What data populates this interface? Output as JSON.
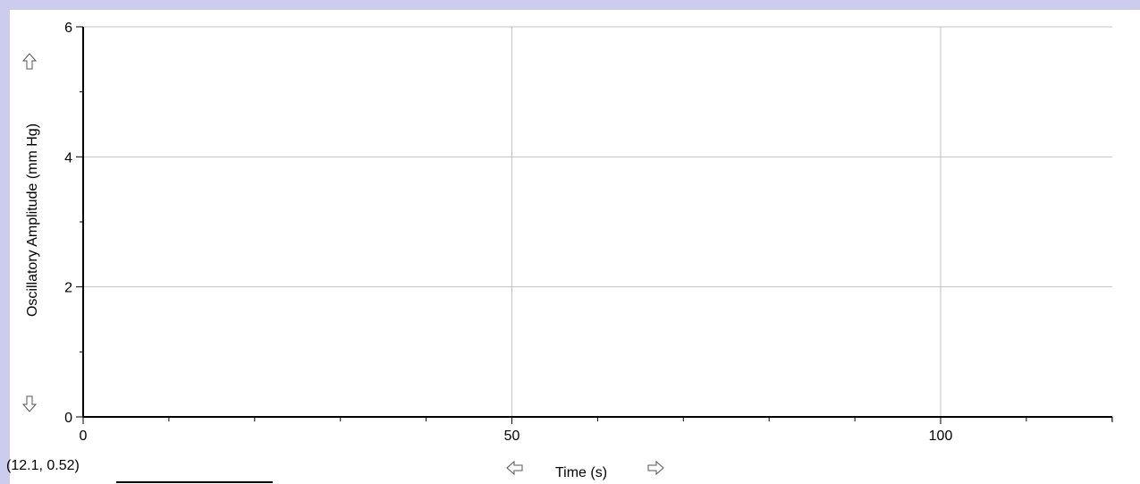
{
  "chart_data": {
    "type": "line",
    "title": "",
    "xlabel": "Time (s)",
    "ylabel": "Oscillatory Amplitude (mm Hg)",
    "xlim": [
      0,
      120
    ],
    "ylim": [
      0,
      6
    ],
    "x_major_ticks": [
      0,
      50,
      100
    ],
    "x_minor_step": 10,
    "y_major_ticks": [
      0,
      2,
      4,
      6
    ],
    "y_minor_step": 1,
    "grid": true,
    "series": []
  },
  "cursor_readout": "(12.1, 0.52)",
  "icons": {
    "y_up": "arrow-up-icon",
    "y_down": "arrow-down-icon",
    "x_left": "arrow-left-icon",
    "x_right": "arrow-right-icon"
  },
  "colors": {
    "background": "#ccccee",
    "plot_background": "#ffffff",
    "grid": "#c0c0c0",
    "axis": "#000000"
  }
}
